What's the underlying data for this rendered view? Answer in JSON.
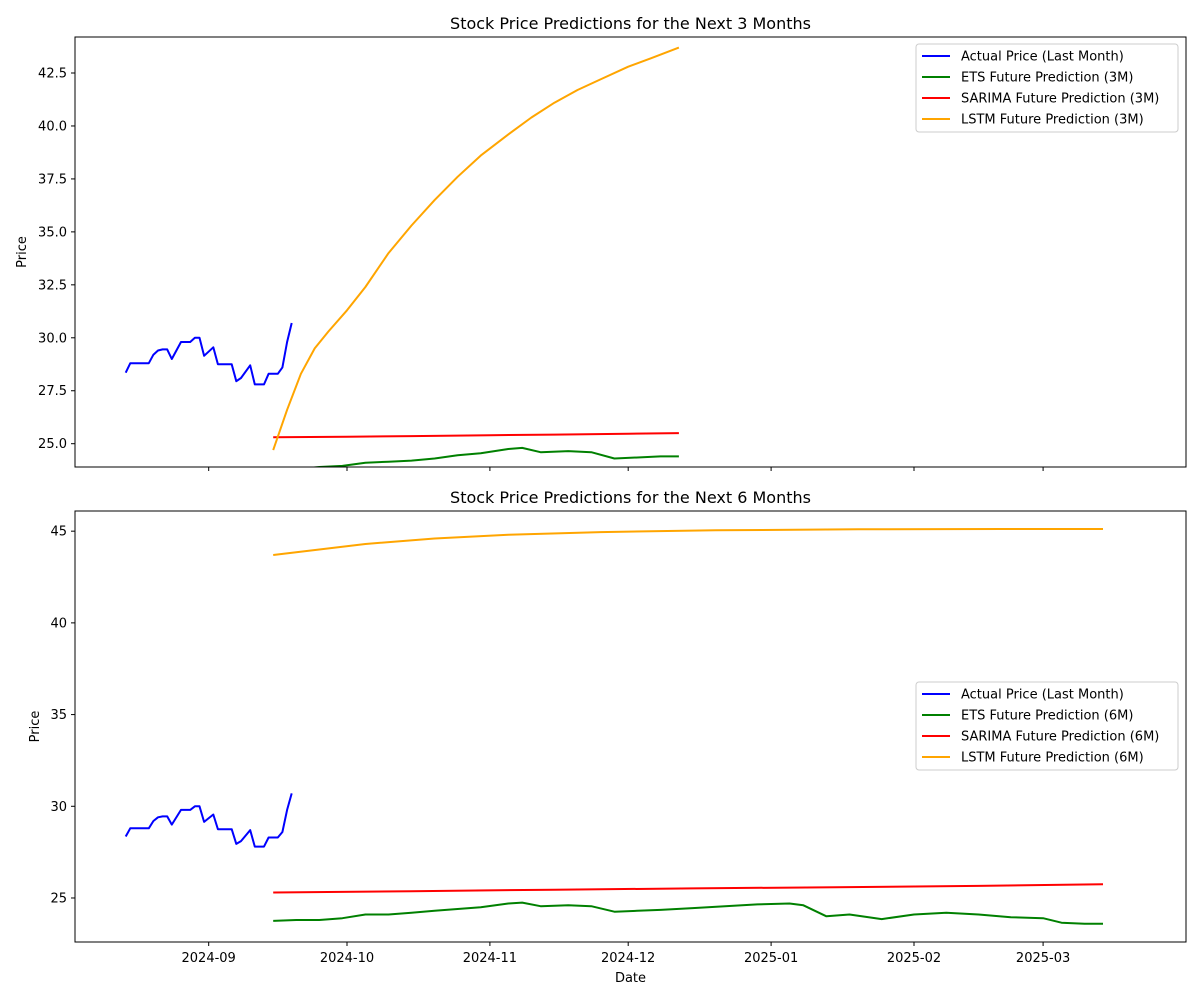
{
  "chart_data": [
    {
      "type": "line",
      "title": "Stock Price Predictions for the Next 3 Months",
      "xlabel": "",
      "ylabel": "Price",
      "xlim": [
        "2024-08-03",
        "2025-04-01"
      ],
      "ylim": [
        23.9,
        44.2
      ],
      "x_ticks": [],
      "y_ticks": [
        25.0,
        27.5,
        30.0,
        32.5,
        35.0,
        37.5,
        40.0,
        42.5
      ],
      "y_tick_labels": [
        "25.0",
        "27.5",
        "30.0",
        "32.5",
        "35.0",
        "37.5",
        "40.0",
        "42.5"
      ],
      "grid": false,
      "legend_position": "top-right",
      "series": [
        {
          "name": "Actual Price (Last Month)",
          "color": "#0000ff",
          "points": [
            [
              "2024-08-14",
              28.35
            ],
            [
              "2024-08-15",
              28.8
            ],
            [
              "2024-08-16",
              28.8
            ],
            [
              "2024-08-19",
              28.8
            ],
            [
              "2024-08-20",
              29.2
            ],
            [
              "2024-08-21",
              29.4
            ],
            [
              "2024-08-22",
              29.45
            ],
            [
              "2024-08-23",
              29.45
            ],
            [
              "2024-08-24",
              29.0
            ],
            [
              "2024-08-26",
              29.8
            ],
            [
              "2024-08-27",
              29.8
            ],
            [
              "2024-08-28",
              29.8
            ],
            [
              "2024-08-29",
              30.0
            ],
            [
              "2024-08-30",
              30.0
            ],
            [
              "2024-08-31",
              29.15
            ],
            [
              "2024-09-02",
              29.55
            ],
            [
              "2024-09-03",
              28.75
            ],
            [
              "2024-09-04",
              28.75
            ],
            [
              "2024-09-05",
              28.75
            ],
            [
              "2024-09-06",
              28.75
            ],
            [
              "2024-09-07",
              27.95
            ],
            [
              "2024-09-08",
              28.1
            ],
            [
              "2024-09-10",
              28.7
            ],
            [
              "2024-09-11",
              27.8
            ],
            [
              "2024-09-12",
              27.8
            ],
            [
              "2024-09-13",
              27.8
            ],
            [
              "2024-09-14",
              28.3
            ],
            [
              "2024-09-16",
              28.3
            ],
            [
              "2024-09-17",
              28.6
            ],
            [
              "2024-09-18",
              29.8
            ],
            [
              "2024-09-19",
              30.7
            ]
          ]
        },
        {
          "name": "ETS Future Prediction (3M)",
          "color": "#008000",
          "points": [
            [
              "2024-09-15",
              23.8
            ],
            [
              "2024-09-20",
              23.8
            ],
            [
              "2024-09-25",
              23.9
            ],
            [
              "2024-09-30",
              23.95
            ],
            [
              "2024-10-05",
              24.1
            ],
            [
              "2024-10-10",
              24.15
            ],
            [
              "2024-10-15",
              24.2
            ],
            [
              "2024-10-20",
              24.3
            ],
            [
              "2024-10-25",
              24.45
            ],
            [
              "2024-10-30",
              24.55
            ],
            [
              "2024-11-05",
              24.75
            ],
            [
              "2024-11-08",
              24.8
            ],
            [
              "2024-11-12",
              24.6
            ],
            [
              "2024-11-18",
              24.65
            ],
            [
              "2024-11-23",
              24.6
            ],
            [
              "2024-11-28",
              24.3
            ],
            [
              "2024-12-03",
              24.35
            ],
            [
              "2024-12-08",
              24.4
            ],
            [
              "2024-12-12",
              24.4
            ]
          ]
        },
        {
          "name": "SARIMA Future Prediction (3M)",
          "color": "#ff0000",
          "points": [
            [
              "2024-09-15",
              25.3
            ],
            [
              "2024-10-01",
              25.33
            ],
            [
              "2024-10-15",
              25.36
            ],
            [
              "2024-11-01",
              25.4
            ],
            [
              "2024-11-15",
              25.43
            ],
            [
              "2024-12-01",
              25.47
            ],
            [
              "2024-12-12",
              25.5
            ]
          ]
        },
        {
          "name": "LSTM Future Prediction (3M)",
          "color": "#ffa500",
          "points": [
            [
              "2024-09-15",
              24.7
            ],
            [
              "2024-09-18",
              26.6
            ],
            [
              "2024-09-21",
              28.3
            ],
            [
              "2024-09-24",
              29.5
            ],
            [
              "2024-09-27",
              30.3
            ],
            [
              "2024-10-01",
              31.3
            ],
            [
              "2024-10-05",
              32.4
            ],
            [
              "2024-10-10",
              34.0
            ],
            [
              "2024-10-15",
              35.3
            ],
            [
              "2024-10-20",
              36.5
            ],
            [
              "2024-10-25",
              37.6
            ],
            [
              "2024-10-30",
              38.6
            ],
            [
              "2024-11-05",
              39.6
            ],
            [
              "2024-11-10",
              40.4
            ],
            [
              "2024-11-15",
              41.1
            ],
            [
              "2024-11-20",
              41.7
            ],
            [
              "2024-11-25",
              42.2
            ],
            [
              "2024-12-01",
              42.8
            ],
            [
              "2024-12-06",
              43.2
            ],
            [
              "2024-12-12",
              43.7
            ]
          ]
        }
      ]
    },
    {
      "type": "line",
      "title": "Stock Price Predictions for the Next 6 Months",
      "xlabel": "Date",
      "ylabel": "Price",
      "xlim": [
        "2024-08-03",
        "2025-04-01"
      ],
      "ylim": [
        22.6,
        46.1
      ],
      "x_ticks": [
        "2024-09-01",
        "2024-10-01",
        "2024-11-01",
        "2024-12-01",
        "2025-01-01",
        "2025-02-01",
        "2025-03-01"
      ],
      "x_tick_labels": [
        "2024-09",
        "2024-10",
        "2024-11",
        "2024-12",
        "2025-01",
        "2025-02",
        "2025-03"
      ],
      "y_ticks": [
        25,
        30,
        35,
        40,
        45
      ],
      "y_tick_labels": [
        "25",
        "30",
        "35",
        "40",
        "45"
      ],
      "grid": false,
      "legend_position": "center-right",
      "series": [
        {
          "name": "Actual Price (Last Month)",
          "color": "#0000ff",
          "points": [
            [
              "2024-08-14",
              28.35
            ],
            [
              "2024-08-15",
              28.8
            ],
            [
              "2024-08-16",
              28.8
            ],
            [
              "2024-08-19",
              28.8
            ],
            [
              "2024-08-20",
              29.2
            ],
            [
              "2024-08-21",
              29.4
            ],
            [
              "2024-08-22",
              29.45
            ],
            [
              "2024-08-23",
              29.45
            ],
            [
              "2024-08-24",
              29.0
            ],
            [
              "2024-08-26",
              29.8
            ],
            [
              "2024-08-27",
              29.8
            ],
            [
              "2024-08-28",
              29.8
            ],
            [
              "2024-08-29",
              30.0
            ],
            [
              "2024-08-30",
              30.0
            ],
            [
              "2024-08-31",
              29.15
            ],
            [
              "2024-09-02",
              29.55
            ],
            [
              "2024-09-03",
              28.75
            ],
            [
              "2024-09-04",
              28.75
            ],
            [
              "2024-09-05",
              28.75
            ],
            [
              "2024-09-06",
              28.75
            ],
            [
              "2024-09-07",
              27.95
            ],
            [
              "2024-09-08",
              28.1
            ],
            [
              "2024-09-10",
              28.7
            ],
            [
              "2024-09-11",
              27.8
            ],
            [
              "2024-09-12",
              27.8
            ],
            [
              "2024-09-13",
              27.8
            ],
            [
              "2024-09-14",
              28.3
            ],
            [
              "2024-09-16",
              28.3
            ],
            [
              "2024-09-17",
              28.6
            ],
            [
              "2024-09-18",
              29.8
            ],
            [
              "2024-09-19",
              30.7
            ]
          ]
        },
        {
          "name": "ETS Future Prediction (6M)",
          "color": "#008000",
          "points": [
            [
              "2024-09-15",
              23.75
            ],
            [
              "2024-09-20",
              23.8
            ],
            [
              "2024-09-25",
              23.8
            ],
            [
              "2024-09-30",
              23.9
            ],
            [
              "2024-10-05",
              24.1
            ],
            [
              "2024-10-10",
              24.1
            ],
            [
              "2024-10-15",
              24.2
            ],
            [
              "2024-10-20",
              24.3
            ],
            [
              "2024-10-25",
              24.4
            ],
            [
              "2024-10-30",
              24.5
            ],
            [
              "2024-11-05",
              24.7
            ],
            [
              "2024-11-08",
              24.75
            ],
            [
              "2024-11-12",
              24.55
            ],
            [
              "2024-11-18",
              24.6
            ],
            [
              "2024-11-23",
              24.55
            ],
            [
              "2024-11-28",
              24.25
            ],
            [
              "2024-12-03",
              24.3
            ],
            [
              "2024-12-08",
              24.35
            ],
            [
              "2024-12-15",
              24.45
            ],
            [
              "2024-12-22",
              24.55
            ],
            [
              "2024-12-29",
              24.65
            ],
            [
              "2025-01-05",
              24.7
            ],
            [
              "2025-01-08",
              24.6
            ],
            [
              "2025-01-13",
              24.0
            ],
            [
              "2025-01-18",
              24.1
            ],
            [
              "2025-01-25",
              23.85
            ],
            [
              "2025-02-01",
              24.1
            ],
            [
              "2025-02-08",
              24.2
            ],
            [
              "2025-02-15",
              24.1
            ],
            [
              "2025-02-22",
              23.95
            ],
            [
              "2025-03-01",
              23.9
            ],
            [
              "2025-03-05",
              23.65
            ],
            [
              "2025-03-10",
              23.6
            ],
            [
              "2025-03-14",
              23.6
            ]
          ]
        },
        {
          "name": "SARIMA Future Prediction (6M)",
          "color": "#ff0000",
          "points": [
            [
              "2024-09-15",
              25.3
            ],
            [
              "2024-10-15",
              25.37
            ],
            [
              "2024-11-15",
              25.45
            ],
            [
              "2024-12-15",
              25.52
            ],
            [
              "2025-01-15",
              25.59
            ],
            [
              "2025-02-15",
              25.66
            ],
            [
              "2025-03-14",
              25.75
            ]
          ]
        },
        {
          "name": "LSTM Future Prediction (6M)",
          "color": "#ffa500",
          "points": [
            [
              "2024-09-15",
              43.7
            ],
            [
              "2024-09-25",
              44.0
            ],
            [
              "2024-10-05",
              44.3
            ],
            [
              "2024-10-20",
              44.6
            ],
            [
              "2024-11-05",
              44.8
            ],
            [
              "2024-11-25",
              44.95
            ],
            [
              "2024-12-20",
              45.05
            ],
            [
              "2025-01-20",
              45.1
            ],
            [
              "2025-02-20",
              45.12
            ],
            [
              "2025-03-14",
              45.12
            ]
          ]
        }
      ]
    }
  ]
}
